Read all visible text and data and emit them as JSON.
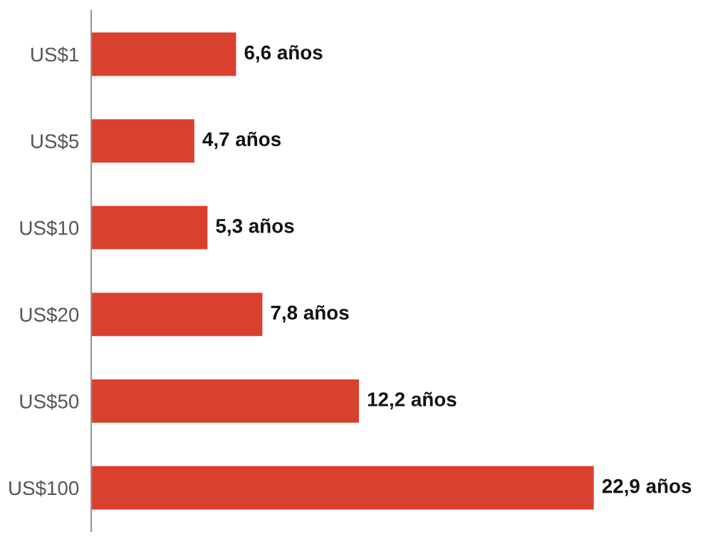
{
  "chart_data": {
    "type": "bar",
    "orientation": "horizontal",
    "categories": [
      "US$1",
      "US$5",
      "US$10",
      "US$20",
      "US$50",
      "US$100"
    ],
    "values": [
      6.6,
      4.7,
      5.3,
      7.8,
      12.2,
      22.9
    ],
    "value_labels": [
      "6,6 años",
      "4,7 años",
      "5,3 años",
      "7,8 años",
      "12,2 años",
      "22,9 años"
    ],
    "color": "#d9412e",
    "grid": false,
    "legend": false
  }
}
